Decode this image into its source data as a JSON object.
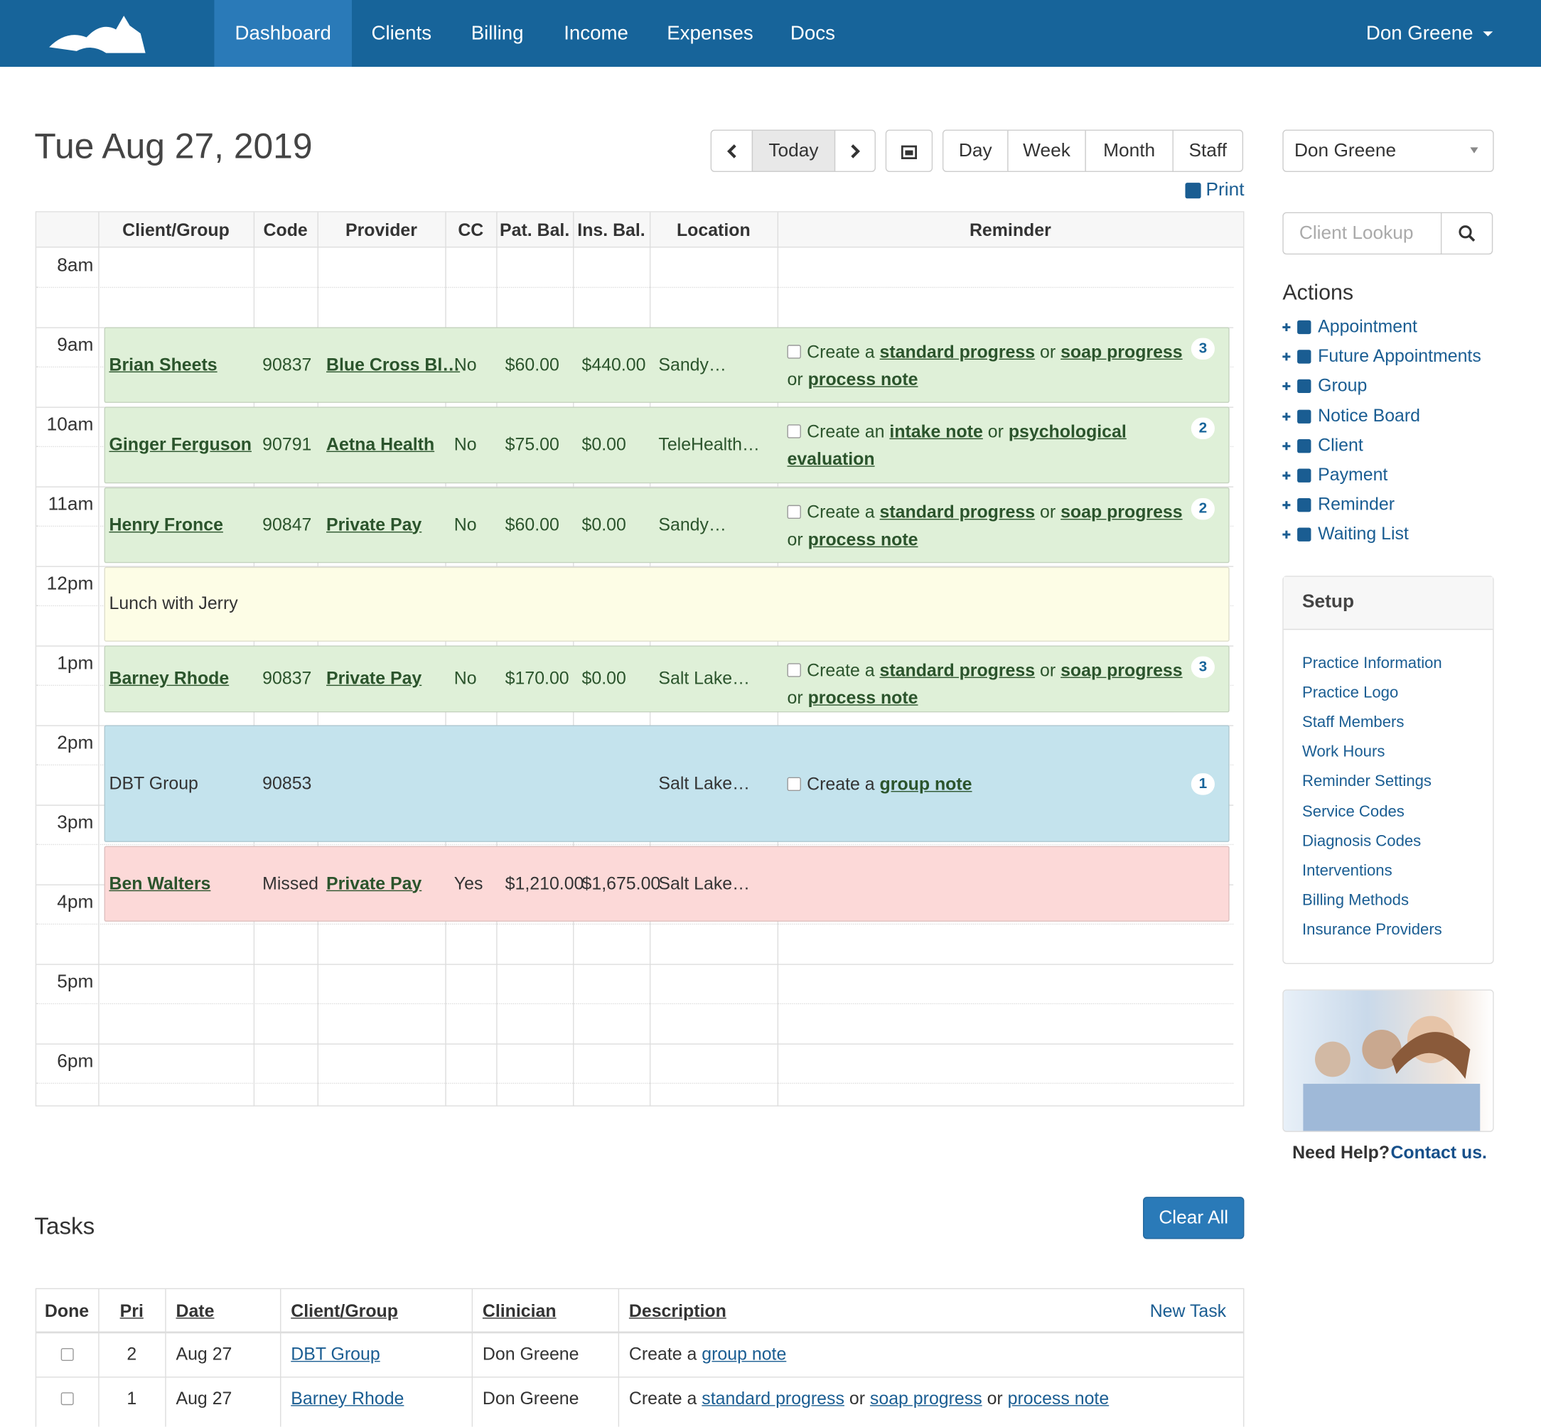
{
  "nav": {
    "items": [
      "Dashboard",
      "Clients",
      "Billing",
      "Income",
      "Expenses",
      "Docs"
    ],
    "active": 0,
    "user": "Don Greene"
  },
  "header": {
    "date": "Tue Aug 27, 2019",
    "today": "Today",
    "views": [
      "Day",
      "Week",
      "Month",
      "Staff"
    ],
    "print": "Print"
  },
  "schedule": {
    "columns": [
      "Client/Group",
      "Code",
      "Provider",
      "CC",
      "Pat. Bal.",
      "Ins. Bal.",
      "Location",
      "Reminder"
    ],
    "times": [
      "8am",
      "9am",
      "10am",
      "11am",
      "12pm",
      "1pm",
      "2pm",
      "3pm",
      "4pm",
      "5pm",
      "6pm"
    ],
    "appointments": [
      {
        "client": "Brian Sheets",
        "client_link": true,
        "code": "90837",
        "provider": "Blue Cross Bl…",
        "cc": "No",
        "pat_bal": "$60.00",
        "ins_bal": "$440.00",
        "location": "Sandy…",
        "reminder": [
          {
            "text": "Create a"
          },
          {
            "link": "standard progress"
          },
          {
            "text": "or"
          },
          {
            "link": "soap progress"
          },
          {
            "text": "or"
          },
          {
            "link": "process note"
          }
        ],
        "badge": 3,
        "color": "#dff0d8"
      },
      {
        "client": "Ginger Ferguson",
        "client_link": true,
        "code": "90791",
        "provider": "Aetna Health",
        "cc": "No",
        "pat_bal": "$75.00",
        "ins_bal": "$0.00",
        "location": "TeleHealth…",
        "reminder": [
          {
            "text": "Create an"
          },
          {
            "link": "intake note"
          },
          {
            "text": "or"
          },
          {
            "link": "psychological evaluation"
          }
        ],
        "badge": 2,
        "color": "#dff0d8"
      },
      {
        "client": "Henry Fronce",
        "client_link": true,
        "code": "90847",
        "provider": "Private Pay",
        "cc": "No",
        "pat_bal": "$60.00",
        "ins_bal": "$0.00",
        "location": "Sandy…",
        "reminder": [
          {
            "text": "Create a"
          },
          {
            "link": "standard progress"
          },
          {
            "text": "or"
          },
          {
            "link": "soap progress"
          },
          {
            "text": "or"
          },
          {
            "link": "process note"
          }
        ],
        "badge": 2,
        "color": "#dff0d8"
      },
      {
        "client": "Lunch with Jerry",
        "client_link": false,
        "color": "#fdfde6"
      },
      {
        "client": "Barney Rhode",
        "client_link": true,
        "code": "90837",
        "provider": "Private Pay",
        "cc": "No",
        "pat_bal": "$170.00",
        "ins_bal": "$0.00",
        "location": "Salt Lake…",
        "reminder": [
          {
            "text": "Create a"
          },
          {
            "link": "standard progress"
          },
          {
            "text": "or"
          },
          {
            "link": "soap progress"
          },
          {
            "text": "or"
          },
          {
            "link": "process note"
          }
        ],
        "badge": 3,
        "color": "#dff0d8"
      },
      {
        "client": "DBT Group",
        "client_link": false,
        "code": "90853",
        "location": "Salt Lake…",
        "reminder": [
          {
            "text": "Create a"
          },
          {
            "link": "group note"
          }
        ],
        "badge": 1,
        "color": "#c4e3ed"
      },
      {
        "client": "Ben Walters",
        "client_link": true,
        "code": "Missed",
        "provider": "Private Pay",
        "cc": "Yes",
        "pat_bal": "$1,210.00",
        "ins_bal": "$1,675.00",
        "location": "Salt Lake…",
        "color": "#fcd9d8"
      }
    ]
  },
  "sidebar": {
    "provider": "Don Greene",
    "lookup": "Client Lookup",
    "actions_title": "Actions",
    "actions": [
      "Appointment",
      "Future Appointments",
      "Group",
      "Notice Board",
      "Client",
      "Payment",
      "Reminder",
      "Waiting List"
    ],
    "setup_title": "Setup",
    "setup": [
      "Practice Information",
      "Practice Logo",
      "Staff Members",
      "Work Hours",
      "Reminder Settings",
      "Service Codes",
      "Diagnosis Codes",
      "Interventions",
      "Billing Methods",
      "Insurance Providers"
    ],
    "help": "Need Help?",
    "contact": "Contact us."
  },
  "tasks": {
    "title": "Tasks",
    "clear": "Clear All",
    "columns": [
      "Done",
      "Pri",
      "Date",
      "Client/Group",
      "Clinician",
      "Description"
    ],
    "new_task": "New Task",
    "rows": [
      {
        "pri": 2,
        "date": "Aug 27",
        "client": "DBT Group",
        "clinician": "Don Greene",
        "description": [
          {
            "text": "Create a"
          },
          {
            "link": "group note"
          }
        ]
      },
      {
        "pri": 1,
        "date": "Aug 27",
        "client": "Barney Rhode",
        "clinician": "Don Greene",
        "description": [
          {
            "text": "Create a"
          },
          {
            "link": "standard progress"
          },
          {
            "text": "or"
          },
          {
            "link": "soap progress"
          },
          {
            "text": "or"
          },
          {
            "link": "process note"
          }
        ]
      }
    ]
  }
}
